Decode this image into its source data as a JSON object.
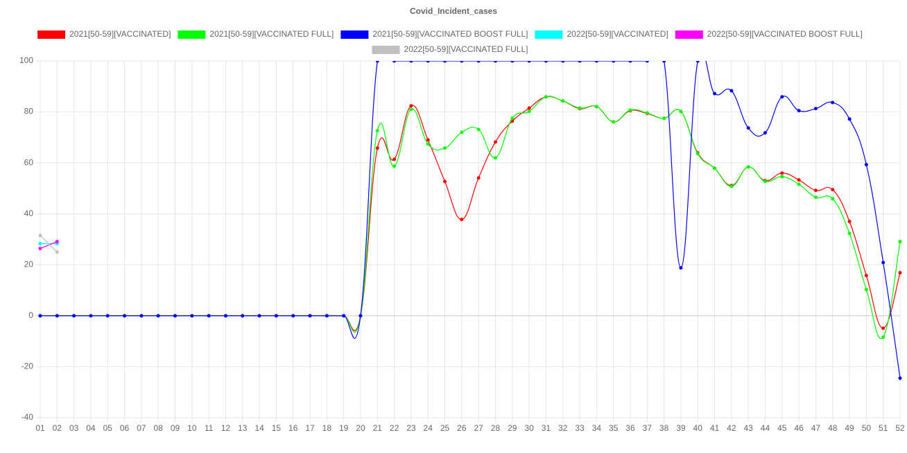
{
  "chart_data": {
    "type": "line",
    "title": "Covid_Incident_cases",
    "categories": [
      "01",
      "02",
      "03",
      "04",
      "05",
      "06",
      "07",
      "08",
      "09",
      "10",
      "11",
      "12",
      "13",
      "14",
      "15",
      "16",
      "17",
      "18",
      "19",
      "20",
      "21",
      "22",
      "23",
      "24",
      "25",
      "26",
      "27",
      "28",
      "29",
      "30",
      "31",
      "32",
      "33",
      "34",
      "35",
      "36",
      "37",
      "38",
      "39",
      "40",
      "41",
      "42",
      "43",
      "44",
      "45",
      "46",
      "47",
      "48",
      "49",
      "50",
      "51",
      "52"
    ],
    "series": [
      {
        "name": "2021[50-59][VACCINATED]",
        "color": "#ff0000",
        "values": [
          0,
          0,
          0,
          0,
          0,
          0,
          0,
          0,
          0,
          0,
          0,
          0,
          0,
          0,
          0,
          0,
          0,
          0,
          0,
          0,
          65.8,
          61.4,
          82.4,
          69.0,
          52.7,
          37.8,
          54.1,
          68.2,
          76.4,
          81.5,
          85.9,
          84.3,
          81.3,
          82.1,
          76.1,
          80.5,
          79.4,
          77.5,
          80.2,
          63.9,
          57.9,
          51.1,
          58.4,
          53.0,
          56.0,
          53.3,
          49.2,
          49.5,
          37.0,
          15.8,
          -4.9,
          16.9
        ]
      },
      {
        "name": "2021[50-59][VACCINATED FULL]",
        "color": "#00ff00",
        "values": [
          0,
          0,
          0,
          0,
          0,
          0,
          0,
          0,
          0,
          0,
          0,
          0,
          0,
          0,
          0,
          0,
          0,
          0,
          0,
          0,
          72.6,
          58.7,
          81.0,
          67.4,
          65.8,
          72.0,
          73.1,
          62.0,
          77.5,
          80.2,
          85.9,
          84.3,
          81.5,
          82.1,
          76.1,
          80.7,
          79.6,
          77.5,
          80.2,
          63.6,
          57.9,
          50.8,
          58.4,
          52.7,
          54.6,
          51.6,
          46.5,
          45.9,
          32.3,
          10.3,
          -8.4,
          29.1
        ]
      },
      {
        "name": "2021[50-59][VACCINATED BOOST FULL]",
        "color": "#0000ff",
        "values": [
          0,
          0,
          0,
          0,
          0,
          0,
          0,
          0,
          0,
          0,
          0,
          0,
          0,
          0,
          0,
          0,
          0,
          0,
          0,
          0,
          100,
          100,
          100,
          100,
          100,
          100,
          100,
          100,
          100,
          100,
          100,
          100,
          100,
          100,
          100,
          100,
          100,
          100,
          18.8,
          100,
          87.2,
          88.3,
          73.7,
          71.8,
          85.9,
          80.5,
          81.3,
          83.7,
          77.2,
          59.3,
          20.9,
          -24.5
        ]
      },
      {
        "name": "2022[50-59][VACCINATED]",
        "color": "#00ffff",
        "values": [
          28.3,
          28.3,
          null,
          null,
          null,
          null,
          null,
          null,
          null,
          null,
          null,
          null,
          null,
          null,
          null,
          null,
          null,
          null,
          null,
          null,
          null,
          null,
          null,
          null,
          null,
          null,
          null,
          null,
          null,
          null,
          null,
          null,
          null,
          null,
          null,
          null,
          null,
          null,
          null,
          null,
          null,
          null,
          null,
          null,
          null,
          null,
          null,
          null,
          null,
          null,
          null,
          null
        ]
      },
      {
        "name": "2022[50-59][VACCINATED BOOST FULL]",
        "color": "#ff00ff",
        "values": [
          26.4,
          29.1,
          null,
          null,
          null,
          null,
          null,
          null,
          null,
          null,
          null,
          null,
          null,
          null,
          null,
          null,
          null,
          null,
          null,
          null,
          null,
          null,
          null,
          null,
          null,
          null,
          null,
          null,
          null,
          null,
          null,
          null,
          null,
          null,
          null,
          null,
          null,
          null,
          null,
          null,
          null,
          null,
          null,
          null,
          null,
          null,
          null,
          null,
          null,
          null,
          null,
          null
        ]
      },
      {
        "name": "2022[50-59][VACCINATED FULL]",
        "color": "#c0c0c0",
        "values": [
          31.5,
          25.0,
          null,
          null,
          null,
          null,
          null,
          null,
          null,
          null,
          null,
          null,
          null,
          null,
          null,
          null,
          null,
          null,
          null,
          null,
          null,
          null,
          null,
          null,
          null,
          null,
          null,
          null,
          null,
          null,
          null,
          null,
          null,
          null,
          null,
          null,
          null,
          null,
          null,
          null,
          null,
          null,
          null,
          null,
          null,
          null,
          null,
          null,
          null,
          null,
          null,
          null
        ]
      }
    ],
    "ylim": [
      -40,
      100
    ],
    "yticks": [
      -40,
      -20,
      0,
      20,
      40,
      60,
      80,
      100
    ],
    "grid": true
  }
}
